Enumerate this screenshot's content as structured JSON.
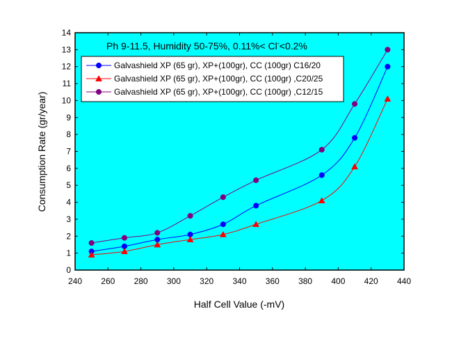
{
  "chart_data": {
    "type": "line",
    "title": "Ph 9-11.5, Humidity 50-75%, 0.11%< Cl",
    "title_superscript": "-",
    "title_suffix": "<0.2%",
    "xlabel": "Half Cell Value (-mV)",
    "ylabel": "Consumption Rate (gr/year)",
    "xlim": [
      240,
      440
    ],
    "ylim": [
      0,
      14
    ],
    "x_ticks": [
      240,
      260,
      280,
      300,
      320,
      340,
      360,
      380,
      400,
      420,
      440
    ],
    "y_ticks": [
      0,
      1,
      2,
      3,
      4,
      5,
      6,
      7,
      8,
      9,
      10,
      11,
      12,
      13,
      14
    ],
    "grid": false,
    "legend_position": "top-left",
    "background_color": "#00ffff",
    "x": [
      250,
      270,
      290,
      310,
      330,
      350,
      390,
      410,
      430
    ],
    "series": [
      {
        "name": "Galvashield XP (65 gr), XP+(100gr), CC (100gr) C16/20",
        "color": "#0000ff",
        "marker": "circle",
        "values": [
          1.1,
          1.4,
          1.8,
          2.1,
          2.7,
          3.8,
          5.6,
          7.8,
          12.0
        ]
      },
      {
        "name": "Galvashield XP (65 gr), XP+(100gr), CC (100gr) ,C20/25",
        "color": "#ff0000",
        "marker": "triangle",
        "values": [
          0.9,
          1.1,
          1.5,
          1.8,
          2.1,
          2.7,
          4.1,
          6.1,
          10.1
        ]
      },
      {
        "name": "Galvashield XP (65 gr), XP+(100gr), CC (100gr) ,C12/15",
        "color": "#800080",
        "marker": "circle",
        "values": [
          1.6,
          1.9,
          2.2,
          3.2,
          4.3,
          5.3,
          7.1,
          9.8,
          13.0
        ]
      }
    ]
  }
}
